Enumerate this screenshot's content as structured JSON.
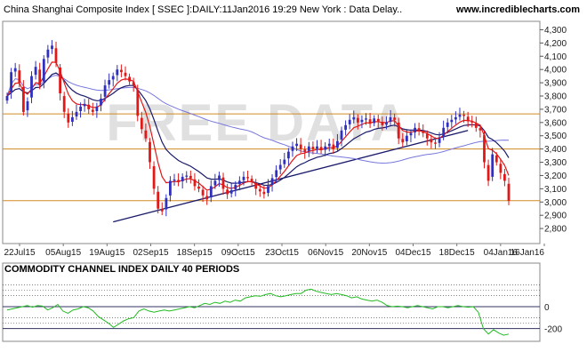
{
  "header": {
    "title": "China Shanghai Composite Index [ SSEC ]:DAILY:11Jan2016 19:29 New York : Data Delay..",
    "site": "www.incrediblecharts.com"
  },
  "watermark": "FREE DATA",
  "colors": {
    "up_candle": "#3030c0",
    "down_candle": "#e01818",
    "ma_short": "#e01818",
    "ma_mid": "#1a1a6a",
    "ma_long": "#7777dd",
    "support_line": "#d08a20",
    "trend_line": "#1a1a6a",
    "cci_line": "#22bb22"
  },
  "chart_data": [
    {
      "type": "candlestick",
      "title": "China Shanghai Composite Index [ SSEC ]:DAILY:11Jan2016 19:29 New York : Data Delay..",
      "ylim": [
        2700,
        4350
      ],
      "yticks": [
        2800,
        2900,
        3000,
        3100,
        3200,
        3300,
        3400,
        3500,
        3600,
        3700,
        3800,
        3900,
        4000,
        4100,
        4200,
        4300
      ],
      "ytick_labels": [
        "2,800",
        "2,900",
        "3,000",
        "3,100",
        "3,200",
        "3,300",
        "3,400",
        "3,500",
        "3,600",
        "3,700",
        "3,800",
        "3,900",
        "4,000",
        "4,100",
        "4,200",
        "4,300"
      ],
      "x_tick_labels": [
        "22Jul15",
        "05Aug15",
        "19Aug15",
        "02Sep15",
        "18Sep15",
        "09Oct15",
        "23Oct15",
        "06Nov15",
        "20Nov15",
        "04Dec15",
        "18Dec15",
        "04Jan16",
        "16Jan16"
      ],
      "horizontal_lines": [
        3010,
        3400,
        3665
      ],
      "trend_line": {
        "from": [
          "22Aug15",
          2850
        ],
        "to": [
          "31Dec15",
          3540
        ]
      },
      "close": [
        3800,
        3980,
        4010,
        3900,
        3680,
        3760,
        3950,
        4020,
        3880,
        4080,
        4150,
        4180,
        4050,
        3820,
        3680,
        3600,
        3640,
        3680,
        3720,
        3740,
        3700,
        3680,
        3720,
        3780,
        3880,
        3920,
        3950,
        4000,
        3980,
        3950,
        3910,
        3880,
        3650,
        3550,
        3480,
        3300,
        3100,
        2950,
        2930,
        3030,
        3160,
        3170,
        3150,
        3190,
        3200,
        3180,
        3120,
        3100,
        3050,
        3020,
        3120,
        3160,
        3200,
        3100,
        3060,
        3090,
        3130,
        3160,
        3190,
        3180,
        3150,
        3100,
        3080,
        3060,
        3120,
        3180,
        3240,
        3280,
        3320,
        3380,
        3420,
        3440,
        3400,
        3380,
        3420,
        3400,
        3420,
        3390,
        3420,
        3440,
        3400,
        3460,
        3540,
        3580,
        3620,
        3640,
        3600,
        3620,
        3630,
        3590,
        3630,
        3610,
        3580,
        3600,
        3640,
        3620,
        3480,
        3450,
        3500,
        3520,
        3560,
        3540,
        3520,
        3480,
        3450,
        3440,
        3480,
        3560,
        3600,
        3620,
        3640,
        3660,
        3650,
        3610,
        3600,
        3560,
        3540,
        3300,
        3160,
        3360,
        3300,
        3220,
        3160,
        3010
      ]
    },
    {
      "type": "line",
      "title": "COMMODITY CHANNEL INDEX DAILY 40 PERIODS",
      "ylim": [
        -300,
        300
      ],
      "yticks": [
        0,
        -200
      ],
      "ytick_labels": [
        "0",
        "-200"
      ],
      "reference_lines": [
        200,
        150,
        100,
        -100,
        -150,
        -200
      ],
      "values": [
        -30,
        -20,
        -10,
        0,
        10,
        -5,
        10,
        5,
        -30,
        -10,
        20,
        -40,
        -60,
        -30,
        -20,
        0,
        -10,
        -40,
        -90,
        -120,
        -150,
        -190,
        -160,
        -130,
        -110,
        -100,
        -40,
        -20,
        -40,
        -50,
        -40,
        -30,
        -40,
        -30,
        -20,
        -10,
        0,
        -10,
        10,
        30,
        20,
        40,
        30,
        50,
        40,
        60,
        50,
        80,
        90,
        100,
        95,
        110,
        120,
        100,
        90,
        100,
        110,
        120,
        120,
        150,
        160,
        140,
        130,
        120,
        110,
        120,
        110,
        100,
        80,
        90,
        70,
        60,
        50,
        60,
        40,
        10,
        0,
        5,
        0,
        -10,
        0,
        10,
        0,
        -10,
        -20,
        0,
        0,
        -10,
        0,
        10,
        0,
        -5,
        0,
        -50,
        -200,
        -250,
        -210,
        -240,
        -260,
        -250
      ]
    }
  ]
}
